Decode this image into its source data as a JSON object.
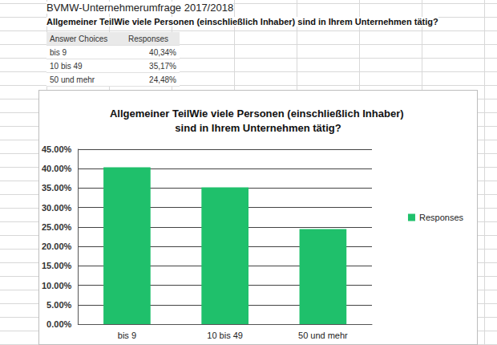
{
  "header": {
    "title": "BVMW-Unternehmerumfrage 2017/2018",
    "question": "Allgemeiner TeilWie viele Personen (einschließlich Inhaber) sind in Ihrem Unternehmen tätig?"
  },
  "table": {
    "columns": [
      "Answer Choices",
      "Responses"
    ],
    "rows": [
      [
        "bis 9",
        "40,34%"
      ],
      [
        "10 bis 49",
        "35,17%"
      ],
      [
        "50 und mehr",
        "24,48%"
      ]
    ]
  },
  "chart_data": {
    "type": "bar",
    "title": "Allgemeiner TeilWie viele Personen (einschließlich Inhaber) sind in Ihrem Unternehmen tätig?",
    "categories": [
      "bis 9",
      "10 bis 49",
      "50 und mehr"
    ],
    "series": [
      {
        "name": "Responses",
        "color": "#1fc06b",
        "values": [
          40.34,
          35.17,
          24.48
        ]
      }
    ],
    "ylim": [
      0,
      45
    ],
    "yticks": [
      {
        "value": 0,
        "label": "0.00%"
      },
      {
        "value": 5,
        "label": "5.00%"
      },
      {
        "value": 10,
        "label": "10.00%"
      },
      {
        "value": 15,
        "label": "15.00%"
      },
      {
        "value": 20,
        "label": "20.00%"
      },
      {
        "value": 25,
        "label": "25.00%"
      },
      {
        "value": 30,
        "label": "30.00%"
      },
      {
        "value": 35,
        "label": "35.00%"
      },
      {
        "value": 40,
        "label": "40.00%"
      },
      {
        "value": 45,
        "label": "45.00%"
      }
    ],
    "grid": true,
    "legend": "right"
  }
}
